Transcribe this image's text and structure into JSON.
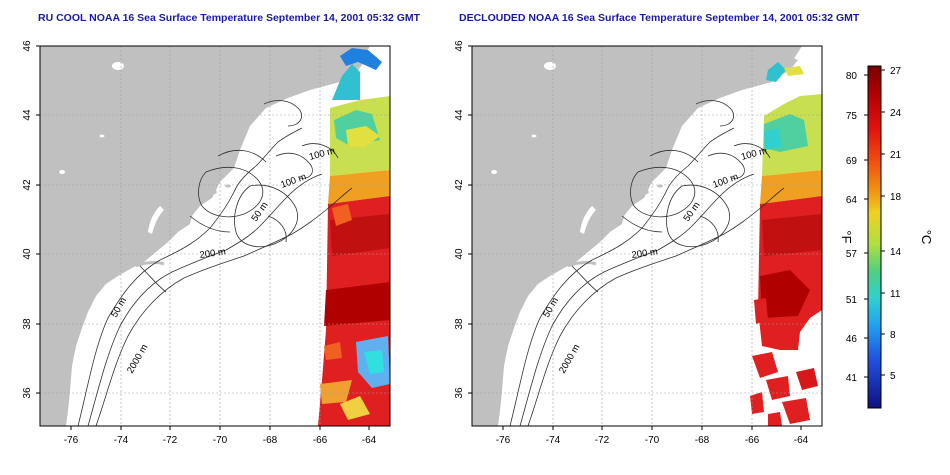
{
  "panels": [
    {
      "title": "RU COOL NOAA 16 Sea Surface Temperature September 14, 2001 05:32 GMT",
      "contour_labels": [
        "100 m",
        "100 m",
        "50 m",
        "200 m",
        "50 m",
        "2000 m"
      ]
    },
    {
      "title": "DECLOUDED NOAA 16 Sea Surface Temperature September 14, 2001 05:32 GMT",
      "contour_labels": [
        "100 m",
        "100 m",
        "50 m",
        "200 m",
        "50 m",
        "2000 m"
      ]
    }
  ],
  "axes": {
    "lon_ticks": [
      "-76",
      "-74",
      "-72",
      "-70",
      "-68",
      "-66",
      "-64"
    ],
    "lat_ticks": [
      "46",
      "44",
      "42",
      "40",
      "38",
      "36"
    ]
  },
  "colorbar": {
    "fahrenheit_label": "°F",
    "celsius_label": "°C",
    "fahrenheit_ticks": [
      "80",
      "75",
      "69",
      "64",
      "57",
      "51",
      "46",
      "41"
    ],
    "celsius_ticks": [
      "27",
      "24",
      "21",
      "18",
      "14",
      "11",
      "8",
      "5"
    ]
  },
  "colors": {
    "land": "#c0c0c0",
    "ocean": "#ffffff",
    "title": "#1a1aa0",
    "warm": "#d42020",
    "hot": "#b00000",
    "mid": "#f0d020",
    "cool": "#40d0d0"
  }
}
